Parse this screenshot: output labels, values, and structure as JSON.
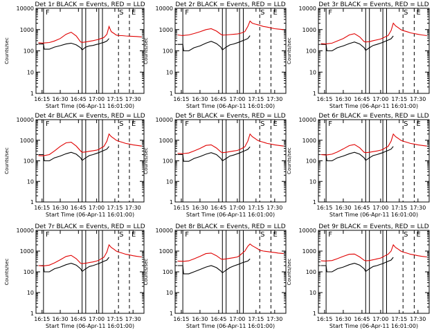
{
  "figure": {
    "background": "#ffffff"
  },
  "colors": {
    "events": "#000000",
    "lld": "#e00000",
    "axis": "#000000"
  },
  "chart_data": {
    "type": "line",
    "shared": {
      "ylabel": "Counts/sec",
      "xlabel": "Start Time (06-Apr-11 16:01:00)",
      "xlim": [
        16.167,
        17.65
      ],
      "ylim": [
        1,
        10000
      ],
      "yscale": "log",
      "xticks": [
        16.25,
        16.5,
        16.75,
        17.0,
        17.25,
        17.5
      ],
      "xtick_labels": [
        "16:15",
        "16:30",
        "16:45",
        "17:00",
        "17:15",
        "17:30"
      ],
      "yticks": [
        1,
        10,
        100,
        1000,
        10000
      ],
      "ytick_labels": [
        "1",
        "10",
        "100",
        "1000",
        "10000"
      ],
      "solid_lines_x": [
        16.27,
        16.8,
        16.85,
        17.03,
        17.08
      ],
      "dashed_lines_x": [
        17.3,
        17.45
      ],
      "markers": [
        {
          "label": "F",
          "x": 16.28
        },
        {
          "label": "S",
          "x": 17.29
        },
        {
          "label": "E",
          "x": 17.46
        }
      ]
    },
    "x": [
      16.2,
      16.27,
      16.28,
      16.35,
      16.42,
      16.5,
      16.58,
      16.65,
      16.72,
      16.78,
      16.8,
      16.85,
      16.9,
      16.95,
      17.0,
      17.03,
      17.06,
      17.1,
      17.14,
      17.17,
      17.2,
      17.24,
      17.27,
      17.3,
      17.35,
      17.4,
      17.45,
      17.5,
      17.55,
      17.62
    ],
    "panels": [
      {
        "title": "Det 1r BLACK = Events, RED = LLD",
        "series": [
          {
            "name": "Events",
            "color": "#000000",
            "values": [
              210,
              210,
              120,
              120,
              150,
              175,
              210,
              230,
              190,
              140,
              110,
              150,
              170,
              180,
              200,
              210,
              230,
              250,
              290,
              380
            ]
          },
          {
            "name": "LLD",
            "color": "#e00000",
            "values": [
              240,
              230,
              235,
              245,
              290,
              380,
              600,
              750,
              500,
              260,
              250,
              260,
              280,
              300,
              330,
              350,
              380,
              420,
              600,
              1400,
              800,
              650,
              550,
              520,
              520,
              500,
              490,
              480,
              470,
              450
            ]
          }
        ]
      },
      {
        "title": "Det 2r BLACK = Events, RED = LLD",
        "series": [
          {
            "name": "Events",
            "color": "#000000",
            "values": [
              200,
              200,
              100,
              100,
              140,
              170,
              230,
              280,
              220,
              150,
              110,
              150,
              190,
              210,
              240,
              260,
              290,
              330,
              380,
              520
            ]
          },
          {
            "name": "LLD",
            "color": "#e00000",
            "values": [
              560,
              520,
              530,
              560,
              650,
              790,
              1000,
              1100,
              850,
              600,
              550,
              560,
              580,
              600,
              620,
              650,
              700,
              800,
              1400,
              2500,
              2000,
              1800,
              1700,
              1600,
              1400,
              1300,
              1200,
              1100,
              1050,
              1000
            ]
          }
        ]
      },
      {
        "title": "Det 3r BLACK = Events, RED = LLD",
        "series": [
          {
            "name": "Events",
            "color": "#000000",
            "values": [
              200,
              200,
              100,
              100,
              140,
              170,
              220,
              260,
              210,
              140,
              105,
              140,
              180,
              200,
              230,
              250,
              280,
              320,
              370,
              500
            ]
          },
          {
            "name": "LLD",
            "color": "#e00000",
            "values": [
              220,
              210,
              215,
              230,
              290,
              380,
              560,
              640,
              450,
              270,
              260,
              270,
              300,
              330,
              360,
              400,
              450,
              520,
              900,
              2000,
              1500,
              1200,
              1000,
              900,
              800,
              700,
              650,
              600,
              560,
              520
            ]
          }
        ]
      },
      {
        "title": "Det 4r BLACK = Events, RED = LLD",
        "series": [
          {
            "name": "Events",
            "color": "#000000",
            "values": [
              200,
              200,
              100,
              100,
              140,
              170,
              220,
              260,
              210,
              140,
              105,
              140,
              180,
              200,
              230,
              250,
              280,
              320,
              370,
              500
            ]
          },
          {
            "name": "LLD",
            "color": "#e00000",
            "values": [
              180,
              175,
              180,
              200,
              300,
              500,
              750,
              800,
              520,
              300,
              260,
              270,
              290,
              310,
              330,
              360,
              420,
              500,
              900,
              2000,
              1500,
              1200,
              1000,
              900,
              800,
              700,
              650,
              600,
              560,
              520
            ]
          }
        ]
      },
      {
        "title": "Det 5r BLACK = Events, RED = LLD",
        "series": [
          {
            "name": "Events",
            "color": "#000000",
            "values": [
              200,
              200,
              95,
              95,
              130,
              160,
              210,
              250,
              200,
              130,
              100,
              130,
              170,
              190,
              220,
              240,
              270,
              310,
              360,
              480
            ]
          },
          {
            "name": "LLD",
            "color": "#e00000",
            "values": [
              230,
              220,
              225,
              240,
              300,
              400,
              560,
              600,
              420,
              270,
              250,
              260,
              280,
              300,
              320,
              350,
              400,
              480,
              900,
              2000,
              1500,
              1200,
              1000,
              900,
              800,
              700,
              650,
              600,
              560,
              520
            ]
          }
        ]
      },
      {
        "title": "Det 6r BLACK = Events, RED = LLD",
        "series": [
          {
            "name": "Events",
            "color": "#000000",
            "values": [
              200,
              200,
              100,
              100,
              140,
              170,
              220,
              260,
              210,
              140,
              105,
              140,
              180,
              200,
              230,
              250,
              280,
              320,
              370,
              500
            ]
          },
          {
            "name": "LLD",
            "color": "#e00000",
            "values": [
              200,
              190,
              195,
              210,
              270,
              380,
              550,
              620,
              430,
              260,
              250,
              260,
              280,
              300,
              330,
              360,
              420,
              500,
              900,
              2000,
              1500,
              1200,
              1000,
              900,
              800,
              700,
              650,
              600,
              560,
              520
            ]
          }
        ]
      },
      {
        "title": "Det 7r BLACK = Events, RED = LLD",
        "series": [
          {
            "name": "Events",
            "color": "#000000",
            "values": [
              200,
              200,
              100,
              100,
              140,
              170,
              220,
              260,
              210,
              140,
              105,
              140,
              180,
              200,
              230,
              250,
              280,
              320,
              370,
              500
            ]
          },
          {
            "name": "LLD",
            "color": "#e00000",
            "values": [
              200,
              190,
              195,
              210,
              270,
              380,
              550,
              620,
              430,
              260,
              250,
              260,
              280,
              300,
              330,
              360,
              420,
              500,
              900,
              2000,
              1500,
              1200,
              1000,
              900,
              800,
              700,
              650,
              600,
              560,
              520
            ]
          }
        ]
      },
      {
        "title": "Det 8r BLACK = Events, RED = LLD",
        "series": [
          {
            "name": "Events",
            "color": "#000000",
            "values": [
              200,
              200,
              80,
              80,
              100,
              130,
              170,
              200,
              160,
              110,
              90,
              120,
              160,
              190,
              220,
              240,
              270,
              300,
              330,
              420
            ]
          },
          {
            "name": "LLD",
            "color": "#e00000",
            "values": [
              330,
              320,
              320,
              340,
              420,
              560,
              760,
              800,
              600,
              420,
              400,
              420,
              450,
              480,
              520,
              600,
              750,
              1000,
              1700,
              2200,
              1800,
              1500,
              1300,
              1100,
              1000,
              950,
              900,
              850,
              800,
              760
            ]
          }
        ]
      },
      {
        "title": "Det 9r BLACK = Events, RED = LLD",
        "series": [
          {
            "name": "Events",
            "color": "#000000",
            "values": [
              200,
              200,
              100,
              100,
              140,
              170,
              220,
              260,
              210,
              140,
              105,
              140,
              180,
              200,
              230,
              250,
              280,
              320,
              370,
              500
            ]
          },
          {
            "name": "LLD",
            "color": "#e00000",
            "values": [
              340,
              330,
              335,
              350,
              430,
              560,
              700,
              720,
              520,
              360,
              340,
              350,
              380,
              420,
              460,
              520,
              600,
              700,
              1000,
              2000,
              1500,
              1200,
              1000,
              900,
              800,
              700,
              650,
              600,
              560,
              520
            ]
          }
        ]
      }
    ]
  }
}
